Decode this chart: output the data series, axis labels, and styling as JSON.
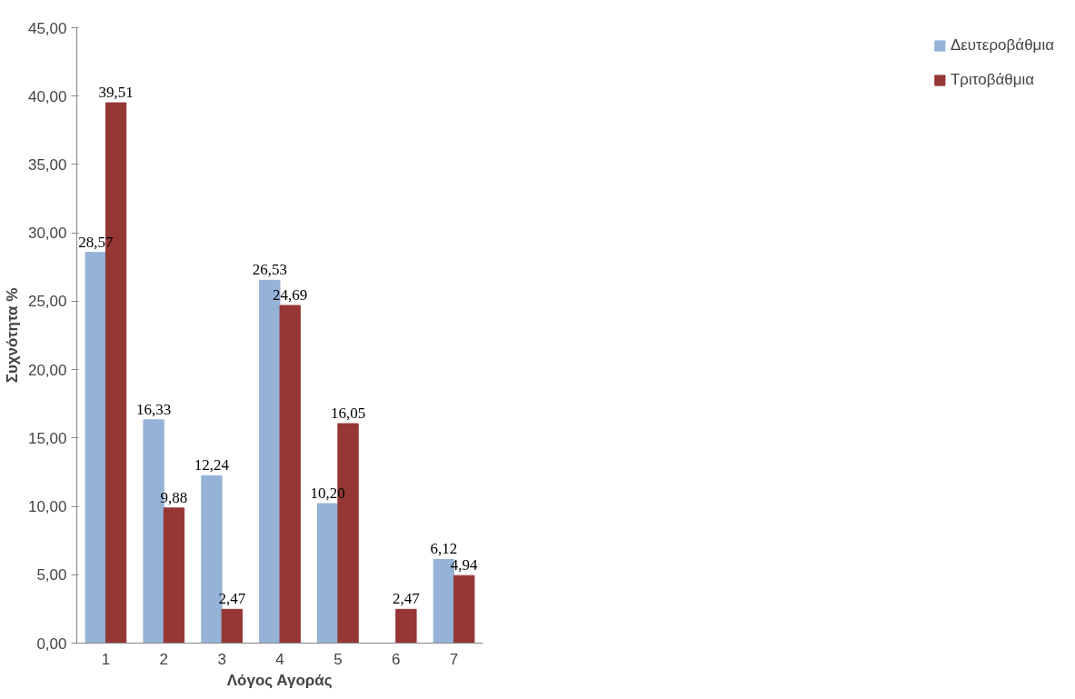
{
  "chart_data": {
    "type": "bar",
    "xlabel": "Λόγος Αγοράς",
    "ylabel": "Συχνότητα %",
    "categories": [
      "1",
      "2",
      "3",
      "4",
      "5",
      "6",
      "7"
    ],
    "series": [
      {
        "name": "Δευτεροβάθμια",
        "color": "#95b3d7",
        "values": [
          28.57,
          16.33,
          12.24,
          26.53,
          10.2,
          null,
          6.12
        ],
        "value_labels": [
          "28,57",
          "16,33",
          "12,24",
          "26,53",
          "10,20",
          null,
          "6,12"
        ]
      },
      {
        "name": "Τριτοβάθμια",
        "color": "#953735",
        "values": [
          39.51,
          9.88,
          2.47,
          24.69,
          16.05,
          2.47,
          4.94
        ],
        "value_labels": [
          "39,51",
          "9,88",
          "2,47",
          "24,69",
          "16,05",
          "2,47",
          "4,94"
        ]
      }
    ],
    "ylim": [
      0,
      45
    ],
    "yticks": [
      {
        "value": 0,
        "label": "0,00"
      },
      {
        "value": 5,
        "label": "5,00"
      },
      {
        "value": 10,
        "label": "10,00"
      },
      {
        "value": 15,
        "label": "15,00"
      },
      {
        "value": 20,
        "label": "20,00"
      },
      {
        "value": 25,
        "label": "25,00"
      },
      {
        "value": 30,
        "label": "30,00"
      },
      {
        "value": 35,
        "label": "35,00"
      },
      {
        "value": 40,
        "label": "40,00"
      },
      {
        "value": 45,
        "label": "45,00"
      }
    ],
    "grid": false,
    "legend": "right"
  }
}
